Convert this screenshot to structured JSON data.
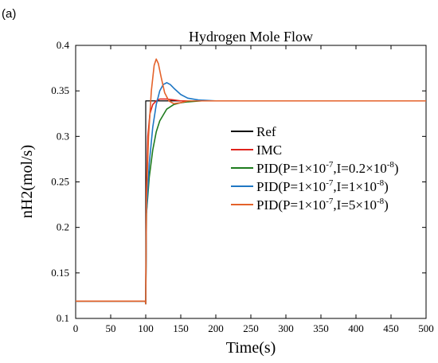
{
  "panel_label": "(a)",
  "chart_data": {
    "type": "line",
    "title": "Hydrogen Mole Flow",
    "xlabel": "Time(s)",
    "ylabel": "nH2(mol/s)",
    "xlim": [
      0,
      500
    ],
    "ylim": [
      0.1,
      0.4
    ],
    "x_ticks": [
      0,
      50,
      100,
      150,
      200,
      250,
      300,
      350,
      400,
      450,
      500
    ],
    "y_ticks": [
      0.1,
      0.15,
      0.2,
      0.25,
      0.3,
      0.35,
      0.4
    ],
    "grid": false,
    "legend_position": "right",
    "series": [
      {
        "name": "Ref",
        "color": "#000000",
        "x": [
          0,
          99.99,
          100,
          500
        ],
        "y": [
          0.119,
          0.119,
          0.339,
          0.339
        ]
      },
      {
        "name": "IMC",
        "color": "#e0231c",
        "x": [
          0,
          99.5,
          100,
          101,
          103,
          106,
          110,
          115,
          120,
          130,
          140,
          150,
          170,
          200,
          300,
          500
        ],
        "y": [
          0.119,
          0.119,
          0.116,
          0.24,
          0.3,
          0.325,
          0.335,
          0.339,
          0.341,
          0.341,
          0.34,
          0.339,
          0.339,
          0.339,
          0.339,
          0.339
        ]
      },
      {
        "name": "PID(P=1×10<sup>-7</sup>,I=0.2×10<sup>-8</sup>)",
        "legend_text": "PID(P=1×10-7,I=0.2×10-8)",
        "legend_parts": [
          "PID(P=1×10",
          "-7",
          ",I=0.2×10",
          "-8",
          ")"
        ],
        "color": "#1e7b1e",
        "x": [
          0,
          99.5,
          100,
          101,
          105,
          110,
          115,
          120,
          130,
          140,
          150,
          160,
          180,
          200,
          250,
          300,
          500
        ],
        "y": [
          0.119,
          0.119,
          0.116,
          0.215,
          0.255,
          0.285,
          0.305,
          0.317,
          0.33,
          0.335,
          0.337,
          0.338,
          0.339,
          0.339,
          0.339,
          0.339,
          0.339
        ]
      },
      {
        "name": "PID(P=1×10-7,I=1×10-8)",
        "legend_text": "PID(P=1×10-7,I=1×10-8)",
        "legend_parts": [
          "PID(P=1×10",
          "-7",
          ",I=1×10",
          "-8",
          ")"
        ],
        "color": "#1f77c4",
        "x": [
          0,
          99.5,
          100,
          101,
          105,
          110,
          115,
          120,
          125,
          130,
          135,
          140,
          150,
          160,
          175,
          200,
          250,
          500
        ],
        "y": [
          0.119,
          0.119,
          0.116,
          0.215,
          0.27,
          0.31,
          0.335,
          0.35,
          0.357,
          0.359,
          0.357,
          0.353,
          0.346,
          0.342,
          0.34,
          0.339,
          0.339,
          0.339
        ]
      },
      {
        "name": "PID(P=1×10-7,I=5×10-8)",
        "legend_text": "PID(P=1×10-7,I=5×10-8)",
        "legend_parts": [
          "PID(P=1×10",
          "-7",
          ",I=5×10",
          "-8",
          ")"
        ],
        "color": "#e4622a",
        "x": [
          0,
          99.5,
          100,
          101,
          104,
          108,
          112,
          115,
          118,
          122,
          127,
          133,
          140,
          150,
          160,
          175,
          200,
          500
        ],
        "y": [
          0.119,
          0.119,
          0.116,
          0.23,
          0.3,
          0.35,
          0.378,
          0.385,
          0.38,
          0.365,
          0.348,
          0.339,
          0.336,
          0.337,
          0.339,
          0.339,
          0.339,
          0.339
        ]
      }
    ]
  }
}
